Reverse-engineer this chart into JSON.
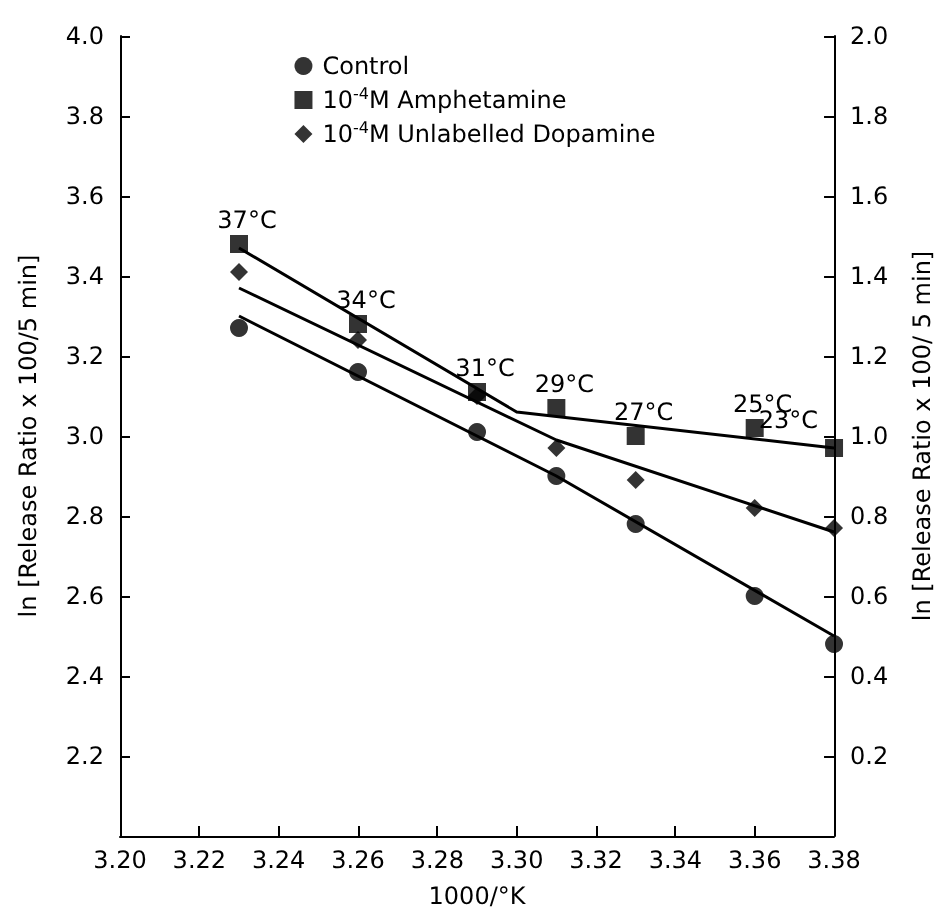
{
  "chart_data": {
    "type": "scatter",
    "xlabel": "1000/°K",
    "ylabel": "ln [Release Ratio x 100/5 min]",
    "y2label": "ln [Release Ratio x 100/ 5 min]",
    "x": [
      3.23,
      3.26,
      3.29,
      3.31,
      3.33,
      3.36,
      3.38
    ],
    "series": [
      {
        "name": "Control",
        "color": "#000000",
        "marker": "circle",
        "values": [
          3.27,
          3.16,
          3.01,
          2.9,
          2.78,
          2.6,
          2.48
        ]
      },
      {
        "name": "10$^{-4}$M Amphetamine",
        "color": "#000000",
        "marker": "square",
        "values": [
          3.48,
          3.28,
          3.11,
          3.07,
          3.0,
          3.02,
          2.97
        ]
      },
      {
        "name": "10$^{-4}$M Unlabelled Dopamine",
        "color": "#000000",
        "marker": "diamond",
        "values": [
          3.41,
          3.24,
          3.1,
          2.97,
          2.89,
          2.82,
          2.77
        ]
      },
      {
        "type": "line",
        "color": "#000000",
        "marker": "none",
        "x": [
          3.23,
          3.31,
          3.38
        ],
        "values": [
          3.3,
          2.9,
          2.5
        ]
      },
      {
        "type": "line",
        "color": "#000000",
        "marker": "none",
        "x": [
          3.23,
          3.3,
          3.38
        ],
        "values": [
          3.47,
          3.06,
          2.97
        ]
      },
      {
        "type": "line",
        "color": "#000000",
        "marker": "none",
        "x": [
          3.23,
          3.31,
          3.38
        ],
        "values": [
          3.37,
          2.99,
          2.76
        ]
      }
    ],
    "xlim": [
      3.2,
      3.38
    ],
    "xticks": [
      {
        "value": 3.2,
        "label": "3.20"
      },
      {
        "value": 3.22,
        "label": "3.22"
      },
      {
        "value": 3.24,
        "label": "3.24"
      },
      {
        "value": 3.26,
        "label": "3.26"
      },
      {
        "value": 3.28,
        "label": "3.28"
      },
      {
        "value": 3.3,
        "label": "3.30"
      },
      {
        "value": 3.32,
        "label": "3.32"
      },
      {
        "value": 3.34,
        "label": "3.34"
      },
      {
        "value": 3.36,
        "label": "3.36"
      },
      {
        "value": 3.38,
        "label": "3.38"
      }
    ],
    "ylim": [
      2.0,
      4.0
    ],
    "yticks": [
      {
        "value": 2.2,
        "label": "2.2"
      },
      {
        "value": 2.4,
        "label": "2.4"
      },
      {
        "value": 2.6,
        "label": "2.6"
      },
      {
        "value": 2.8,
        "label": "2.8"
      },
      {
        "value": 3.0,
        "label": "3.0"
      },
      {
        "value": 3.2,
        "label": "3.2"
      },
      {
        "value": 3.4,
        "label": "3.4"
      },
      {
        "value": 3.6,
        "label": "3.6"
      },
      {
        "value": 3.8,
        "label": "3.8"
      },
      {
        "value": 4.0,
        "label": "4.0"
      }
    ],
    "y2lim": [
      0,
      2.0
    ],
    "y2ticks": [
      {
        "value": 0.2,
        "label": "0.2"
      },
      {
        "value": 0.4,
        "label": "0.4"
      },
      {
        "value": 0.6,
        "label": "0.6"
      },
      {
        "value": 0.8,
        "label": "0.8"
      },
      {
        "value": 1.0,
        "label": "1.0"
      },
      {
        "value": 1.2,
        "label": "1.2"
      },
      {
        "value": 1.4,
        "label": "1.4"
      },
      {
        "value": 1.6,
        "label": "1.6"
      },
      {
        "value": 1.8,
        "label": "1.8"
      },
      {
        "value": 2.0,
        "label": "2.0"
      }
    ],
    "annotations": [
      {
        "text": "37°C",
        "x": 3.23,
        "y": 3.48
      },
      {
        "text": "34°C",
        "x": 3.26,
        "y": 3.28
      },
      {
        "text": "31°C",
        "x": 3.29,
        "y": 3.11
      },
      {
        "text": "29°C",
        "x": 3.31,
        "y": 3.07
      },
      {
        "text": "27°C",
        "x": 3.33,
        "y": 3.0
      },
      {
        "text": "25°C",
        "x": 3.36,
        "y": 3.02
      },
      {
        "text": "23°C",
        "x": 3.38,
        "y": 2.97
      }
    ],
    "grid": false,
    "legend": "top"
  }
}
